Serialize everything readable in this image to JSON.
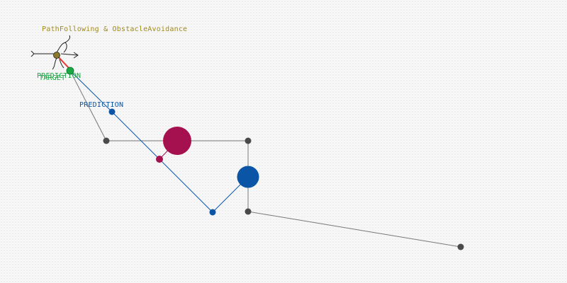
{
  "title": "PathFollowing & ObstacleAvoidance",
  "labels": {
    "prediction_main": "PREDICTION",
    "target": "TARGET",
    "prediction_secondary": "PREDICTION"
  },
  "colors": {
    "title": "#a08a1c",
    "path_line": "#777777",
    "path_node": "#4a4a4a",
    "prediction": "#0a55a5",
    "target": "#1aa843",
    "obstacle_magenta": "#a5104f",
    "obstacle_blue": "#0a55a5",
    "agent_body": "#8a7a2a",
    "agent_heading": "#e8342c"
  },
  "icons": {
    "agent": "bird-agent-icon"
  }
}
